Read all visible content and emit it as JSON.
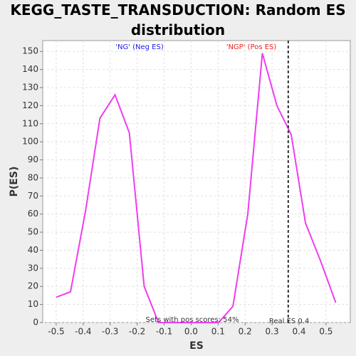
{
  "chart_data": {
    "type": "line",
    "title": "KEGG_TASTE_TRANSDUCTION: Random ES distribution",
    "x_label": "ES",
    "y_label": "P(ES)",
    "series": [
      {
        "color": "#f03cf0",
        "x": [
          -0.5,
          -0.447,
          -0.391,
          -0.338,
          -0.282,
          -0.229,
          -0.174,
          -0.121,
          -0.065,
          -0.009,
          0.046,
          0.102,
          0.155,
          0.21,
          0.264,
          0.318,
          0.371,
          0.424,
          0.48,
          0.536
        ],
        "values": [
          14,
          17,
          62,
          113,
          126,
          105,
          20,
          0,
          0,
          0,
          0,
          0,
          9,
          60,
          149,
          120,
          104,
          55,
          34,
          11
        ]
      }
    ],
    "xlim": [
      -0.55,
      0.59
    ],
    "ylim": [
      0,
      156
    ],
    "xticks": [
      -0.5,
      -0.4,
      -0.3,
      -0.2,
      -0.1,
      {
        "value": 0,
        "label": "0.0"
      },
      0.1,
      0.2,
      0.3,
      0.4,
      0.5
    ],
    "yticks": [
      0,
      10,
      20,
      30,
      40,
      50,
      60,
      70,
      80,
      90,
      100,
      110,
      120,
      130,
      140,
      150
    ],
    "grid": true,
    "real_es": {
      "x": 0.36,
      "label": "Real ES 0.4",
      "color": "#333333"
    },
    "annotations": [
      {
        "text": "'NG' (Neg ES)",
        "color": "#2020ee"
      },
      {
        "text": "'NGP' (Pos ES)",
        "color": "#ee2020"
      },
      {
        "text": "Sets with pos scores: 54%",
        "color": "#333333"
      }
    ]
  }
}
